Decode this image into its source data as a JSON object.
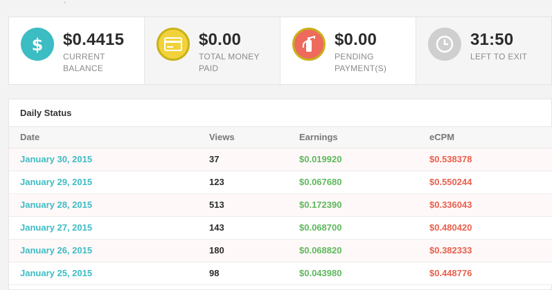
{
  "stats": [
    {
      "value": "$0.4415",
      "label": "Current Balance",
      "icon": "dollar-icon",
      "color": "#3cbcc3"
    },
    {
      "value": "$0.00",
      "label": "Total Money Paid",
      "icon": "credit-card-icon",
      "color": "#f2d23b"
    },
    {
      "value": "$0.00",
      "label": "Pending Payment(s)",
      "icon": "fire-extinguisher-icon",
      "color": "#ee6a5c"
    },
    {
      "value": "31:50",
      "label": "Left to Exit",
      "icon": "clock-icon",
      "color": "#cfcfcf"
    }
  ],
  "daily_status": {
    "title": "Daily Status",
    "columns": [
      "Date",
      "Views",
      "Earnings",
      "eCPM"
    ],
    "rows": [
      {
        "date": "January 30, 2015",
        "views": "37",
        "earnings": "$0.019920",
        "ecpm": "$0.538378"
      },
      {
        "date": "January 29, 2015",
        "views": "123",
        "earnings": "$0.067680",
        "ecpm": "$0.550244"
      },
      {
        "date": "January 28, 2015",
        "views": "513",
        "earnings": "$0.172390",
        "ecpm": "$0.336043"
      },
      {
        "date": "January 27, 2015",
        "views": "143",
        "earnings": "$0.068700",
        "ecpm": "$0.480420"
      },
      {
        "date": "January 26, 2015",
        "views": "180",
        "earnings": "$0.068820",
        "ecpm": "$0.382333"
      },
      {
        "date": "January 25, 2015",
        "views": "98",
        "earnings": "$0.043980",
        "ecpm": "$0.448776"
      }
    ]
  }
}
